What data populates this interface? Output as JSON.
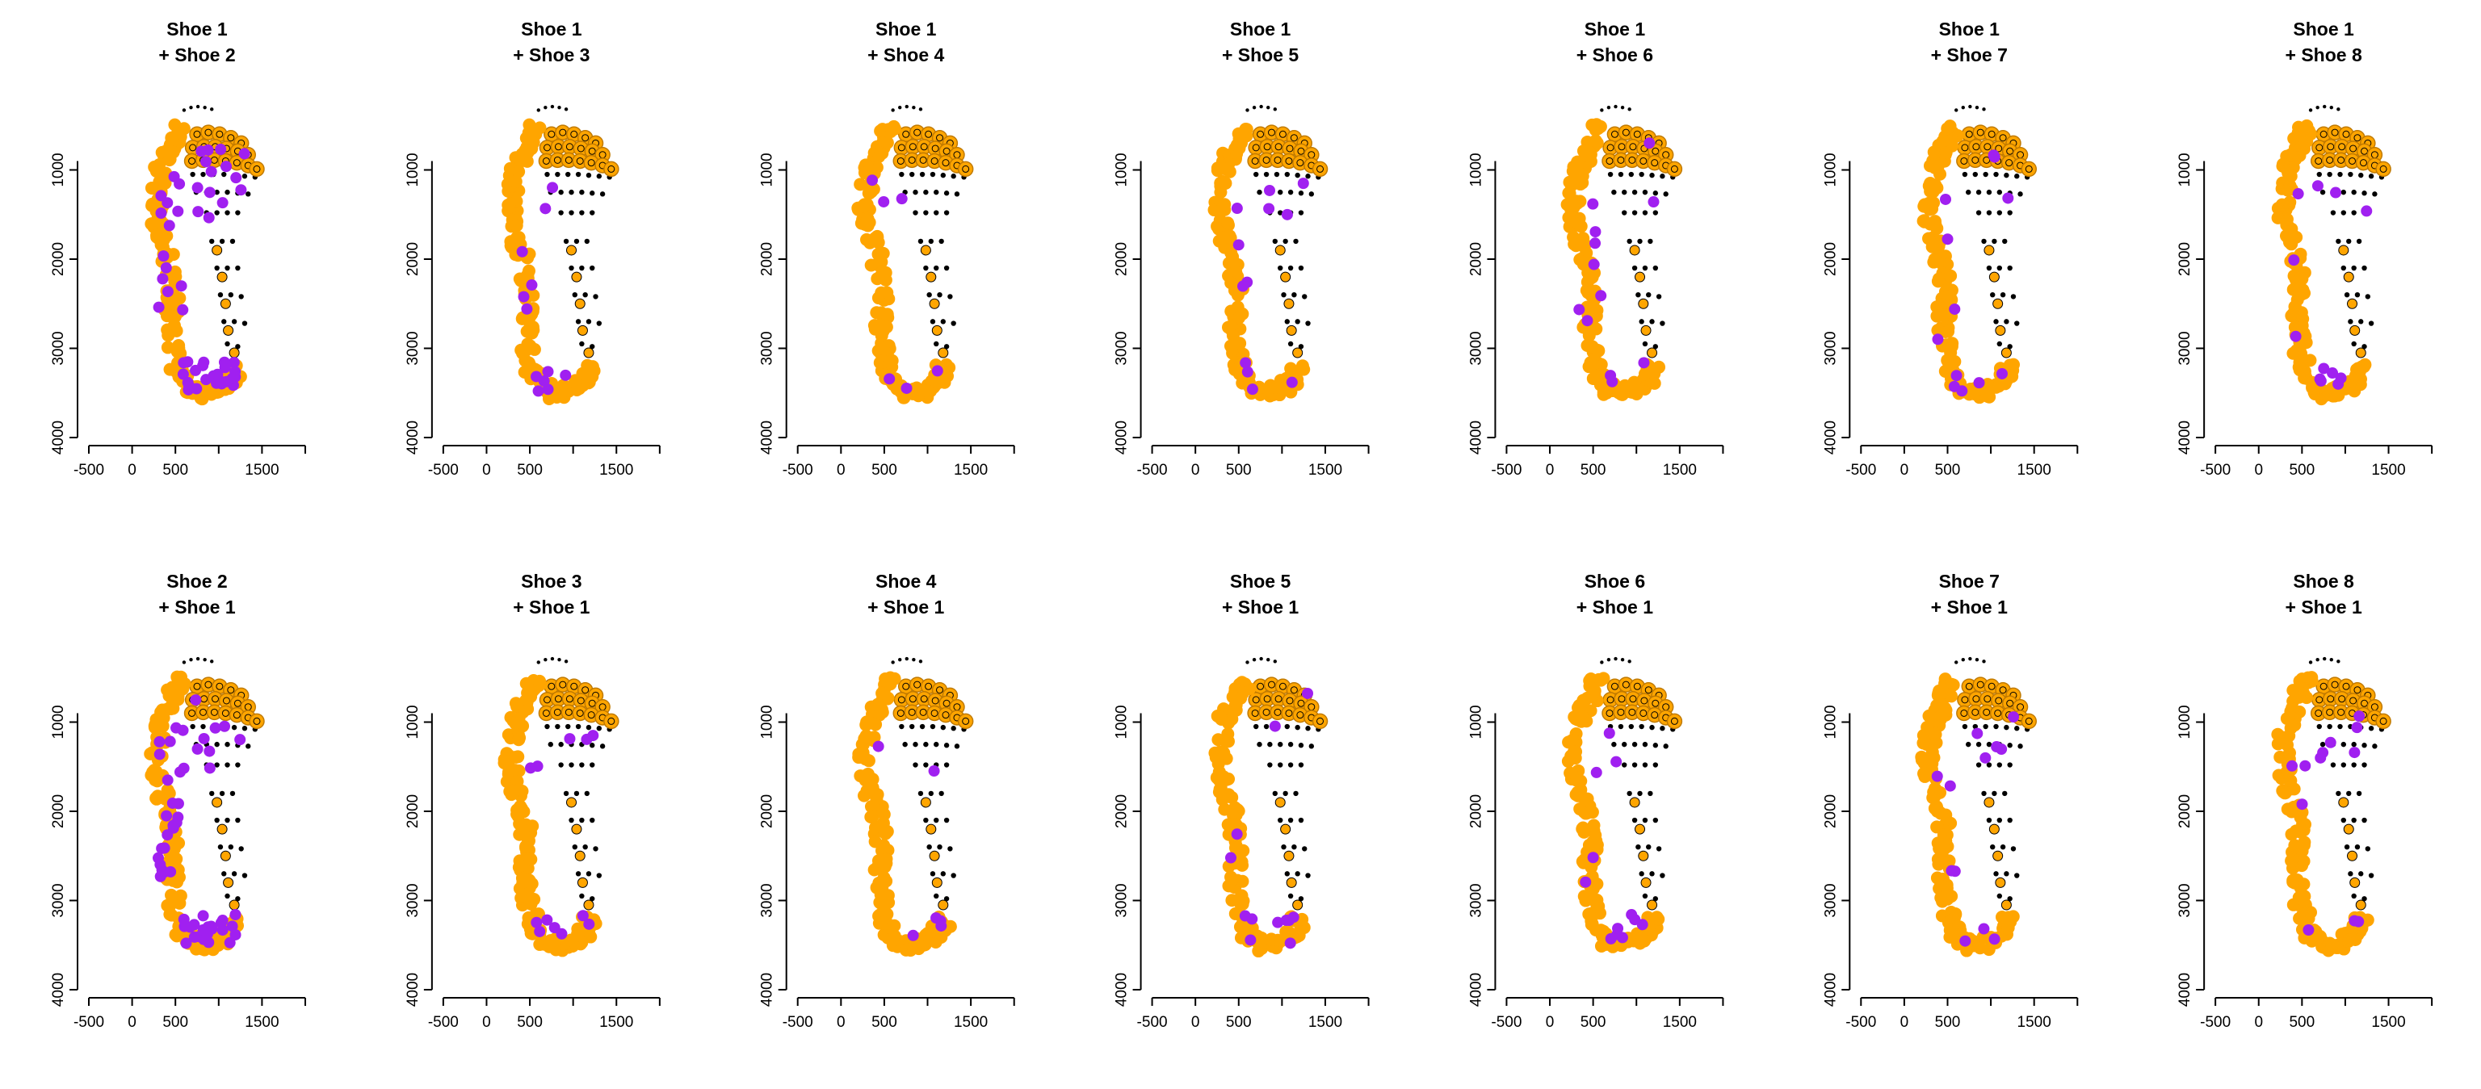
{
  "colors": {
    "orange": "#ffa500",
    "purple": "#a020f0",
    "black": "#000000"
  },
  "chart_data": {
    "type": "scatter",
    "layout": "2 rows x 7 columns of small-multiple shoe outsole overlay plots",
    "legend": [],
    "axes": {
      "x": {
        "ticks": [
          -500,
          0,
          500,
          1500
        ],
        "tick_labels": [
          "-500",
          "0",
          "500",
          "1500"
        ],
        "range": [
          -500,
          2000
        ]
      },
      "y": {
        "ticks": [
          1000,
          2000,
          3000,
          4000
        ],
        "tick_labels": [
          "1000",
          "2000",
          "3000",
          "4000"
        ],
        "range": [
          0,
          4000
        ],
        "reversed": true
      }
    },
    "panels": [
      {
        "title_line1": "Shoe 1",
        "title_line2": "+ Shoe 2",
        "purple_emphasis": "dense-heel-lateral"
      },
      {
        "title_line1": "Shoe 1",
        "title_line2": "+ Shoe 3",
        "purple_emphasis": "moderate"
      },
      {
        "title_line1": "Shoe 1",
        "title_line2": "+ Shoe 4",
        "purple_emphasis": "sparse"
      },
      {
        "title_line1": "Shoe 1",
        "title_line2": "+ Shoe 5",
        "purple_emphasis": "moderate"
      },
      {
        "title_line1": "Shoe 1",
        "title_line2": "+ Shoe 6",
        "purple_emphasis": "moderate"
      },
      {
        "title_line1": "Shoe 1",
        "title_line2": "+ Shoe 7",
        "purple_emphasis": "moderate"
      },
      {
        "title_line1": "Shoe 1",
        "title_line2": "+ Shoe 8",
        "purple_emphasis": "moderate"
      },
      {
        "title_line1": "Shoe 2",
        "title_line2": "+ Shoe 1",
        "purple_emphasis": "dense-heel-lateral"
      },
      {
        "title_line1": "Shoe 3",
        "title_line2": "+ Shoe 1",
        "purple_emphasis": "moderate"
      },
      {
        "title_line1": "Shoe 4",
        "title_line2": "+ Shoe 1",
        "purple_emphasis": "sparse"
      },
      {
        "title_line1": "Shoe 5",
        "title_line2": "+ Shoe 1",
        "purple_emphasis": "moderate"
      },
      {
        "title_line1": "Shoe 6",
        "title_line2": "+ Shoe 1",
        "purple_emphasis": "moderate"
      },
      {
        "title_line1": "Shoe 7",
        "title_line2": "+ Shoe 1",
        "purple_emphasis": "moderate"
      },
      {
        "title_line1": "Shoe 8",
        "title_line2": "+ Shoe 1",
        "purple_emphasis": "moderate"
      }
    ],
    "representative_shape": {
      "description": "Outline points of a running-shoe outsole (data units: x mm-like, y downward)",
      "lateral_band": [
        [
          540,
          560
        ],
        [
          470,
          700
        ],
        [
          400,
          850
        ],
        [
          340,
          1000
        ],
        [
          300,
          1200
        ],
        [
          280,
          1400
        ],
        [
          300,
          1600
        ],
        [
          350,
          1800
        ],
        [
          420,
          2000
        ],
        [
          460,
          2200
        ],
        [
          470,
          2400
        ],
        [
          460,
          2600
        ],
        [
          460,
          2800
        ],
        [
          480,
          3000
        ],
        [
          520,
          3200
        ],
        [
          580,
          3350
        ],
        [
          680,
          3450
        ],
        [
          800,
          3500
        ],
        [
          920,
          3480
        ],
        [
          1040,
          3420
        ],
        [
          1130,
          3350
        ],
        [
          1180,
          3250
        ]
      ],
      "forefoot_lugs": [
        [
          750,
          600
        ],
        [
          880,
          580
        ],
        [
          1010,
          600
        ],
        [
          1140,
          640
        ],
        [
          1260,
          700
        ],
        [
          700,
          750
        ],
        [
          830,
          740
        ],
        [
          960,
          740
        ],
        [
          1090,
          760
        ],
        [
          1220,
          790
        ],
        [
          1340,
          830
        ],
        [
          690,
          900
        ],
        [
          820,
          890
        ],
        [
          950,
          890
        ],
        [
          1080,
          900
        ],
        [
          1210,
          920
        ],
        [
          1340,
          950
        ],
        [
          1440,
          990
        ]
      ],
      "black_grid": [
        [
          700,
          1050
        ],
        [
          820,
          1050
        ],
        [
          940,
          1050
        ],
        [
          1060,
          1050
        ],
        [
          1180,
          1060
        ],
        [
          1300,
          1070
        ],
        [
          1420,
          1080
        ],
        [
          740,
          1250
        ],
        [
          860,
          1250
        ],
        [
          980,
          1250
        ],
        [
          1100,
          1250
        ],
        [
          1220,
          1260
        ],
        [
          1340,
          1270
        ],
        [
          860,
          1480
        ],
        [
          980,
          1480
        ],
        [
          1100,
          1480
        ],
        [
          1220,
          1480
        ],
        [
          920,
          1800
        ],
        [
          1040,
          1800
        ],
        [
          1160,
          1800
        ],
        [
          980,
          2100
        ],
        [
          1100,
          2100
        ],
        [
          1220,
          2100
        ],
        [
          1020,
          2400
        ],
        [
          1140,
          2400
        ],
        [
          1260,
          2420
        ],
        [
          1060,
          2700
        ],
        [
          1180,
          2700
        ],
        [
          1300,
          2720
        ],
        [
          1100,
          2950
        ],
        [
          1220,
          2980
        ]
      ],
      "toe_outline": [
        [
          600,
          330
        ],
        [
          680,
          300
        ],
        [
          760,
          290
        ],
        [
          840,
          300
        ],
        [
          920,
          320
        ]
      ]
    }
  }
}
